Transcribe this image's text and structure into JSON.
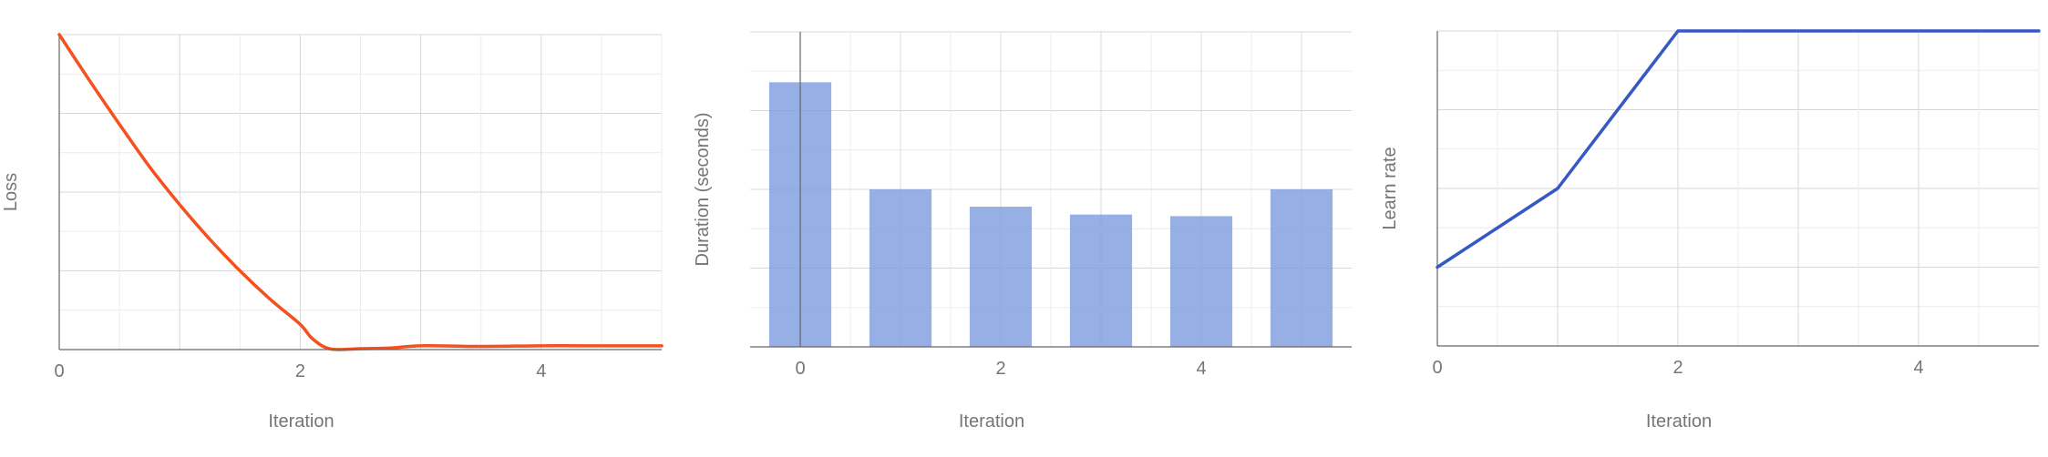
{
  "chart_data": [
    {
      "type": "line",
      "xlabel": "Iteration",
      "ylabel": "Loss",
      "x_ticks": [
        "0",
        "2",
        "4"
      ],
      "xlim": [
        0,
        5
      ],
      "ylim": [
        0,
        1
      ],
      "x": [
        0,
        0.25,
        0.5,
        0.75,
        1,
        1.25,
        1.5,
        1.75,
        2,
        2.1,
        2.25,
        2.5,
        2.75,
        3,
        3.5,
        4,
        4.5,
        5
      ],
      "series": [
        {
          "color": "#f4511e",
          "values": [
            1.0,
            0.855,
            0.715,
            0.58,
            0.46,
            0.35,
            0.25,
            0.16,
            0.08,
            0.035,
            0.002,
            0.003,
            0.005,
            0.012,
            0.01,
            0.012,
            0.012,
            0.012
          ]
        }
      ],
      "grid": true
    },
    {
      "type": "bar",
      "xlabel": "Iteration",
      "ylabel": "Duration (seconds)",
      "x_ticks": [
        "0",
        "2",
        "4"
      ],
      "categories": [
        0,
        1,
        2,
        3,
        4,
        5
      ],
      "values": [
        0.84,
        0.5,
        0.445,
        0.42,
        0.415,
        0.5
      ],
      "ylim": [
        0,
        1
      ],
      "color": "#7f9ddf",
      "grid": true
    },
    {
      "type": "line",
      "xlabel": "Iteration",
      "ylabel": "Learn rate",
      "x_ticks": [
        "0",
        "2",
        "4"
      ],
      "xlim": [
        0,
        5
      ],
      "ylim": [
        0,
        1
      ],
      "x": [
        0,
        1,
        2,
        3,
        4,
        5
      ],
      "series": [
        {
          "color": "#3558c4",
          "values": [
            0.25,
            0.5,
            1.0,
            1.0,
            1.0,
            1.0
          ]
        }
      ],
      "grid": true
    }
  ]
}
